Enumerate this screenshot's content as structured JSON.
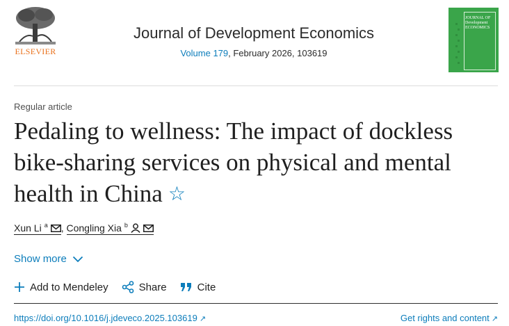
{
  "header": {
    "publisher": "ELSEVIER",
    "journal_title": "Journal of Development Economics",
    "volume_link": "Volume 179",
    "issue_info": ", February 2026, 103619",
    "cover_title": "JOURNAL OF Development ECONOMICS"
  },
  "article": {
    "type": "Regular article",
    "title": "Pedaling to wellness: The impact of dockless bike-sharing services on physical and mental health in China",
    "authors": [
      {
        "name": "Xun Li",
        "affil": "a"
      },
      {
        "name": "Congling Xia",
        "affil": "b"
      }
    ],
    "author_separator": ",",
    "show_more": "Show more"
  },
  "actions": {
    "mendeley": "Add to Mendeley",
    "share": "Share",
    "cite": "Cite"
  },
  "footer": {
    "doi": "https://doi.org/10.1016/j.jdeveco.2025.103619",
    "rights": "Get rights and content"
  },
  "colors": {
    "link": "#0c7dbb",
    "publisher_orange": "#e9711c",
    "cover_green": "#3aa54a"
  }
}
